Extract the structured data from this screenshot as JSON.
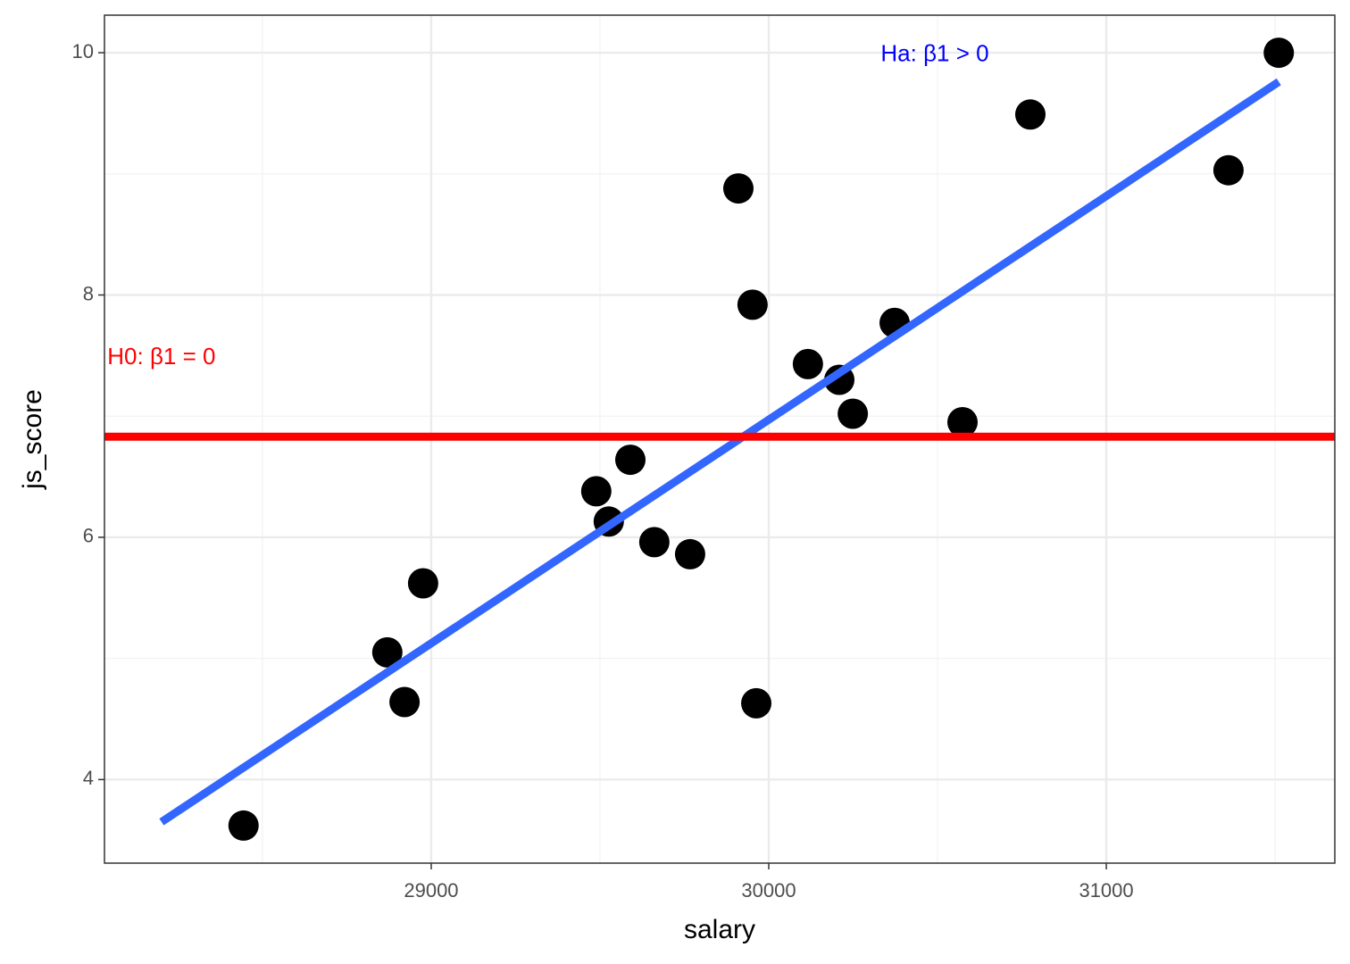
{
  "chart_data": {
    "type": "scatter",
    "x_label": "salary",
    "y_label": "js_score",
    "x": [
      28444,
      28870,
      28921,
      28976,
      29489,
      29526,
      29590,
      29661,
      29767,
      29910,
      29952,
      29963,
      30116,
      30209,
      30249,
      30373,
      30574,
      30775,
      31362,
      31511
    ],
    "values": [
      3.62,
      5.05,
      4.64,
      5.62,
      6.38,
      6.13,
      6.64,
      5.96,
      5.86,
      8.88,
      7.92,
      4.63,
      7.43,
      7.3,
      7.02,
      7.77,
      6.95,
      9.49,
      9.03,
      10.0
    ],
    "color": "#000000",
    "fit_line": {
      "x": [
        28201,
        31511
      ],
      "y": [
        3.65,
        9.76
      ],
      "color": "#3366ff"
    },
    "hline": {
      "y": 6.83,
      "color": "#ff0000"
    },
    "annotations": [
      {
        "text": "H0: β1 = 0",
        "x": 28201,
        "y": 7.48,
        "color": "#ff0000"
      },
      {
        "text": "Ha: β1 > 0",
        "x": 30492,
        "y": 9.98,
        "color": "#0000ff"
      }
    ],
    "xlim": [
      28032,
      31677
    ],
    "ylim": [
      3.31,
      10.31
    ],
    "xticks": [
      29000,
      30000,
      31000
    ],
    "yticks": [
      4,
      6,
      8,
      10
    ],
    "xminor": [
      28500,
      29500,
      30500,
      31500
    ],
    "yminor": [
      5,
      7,
      9
    ],
    "grid": true
  }
}
